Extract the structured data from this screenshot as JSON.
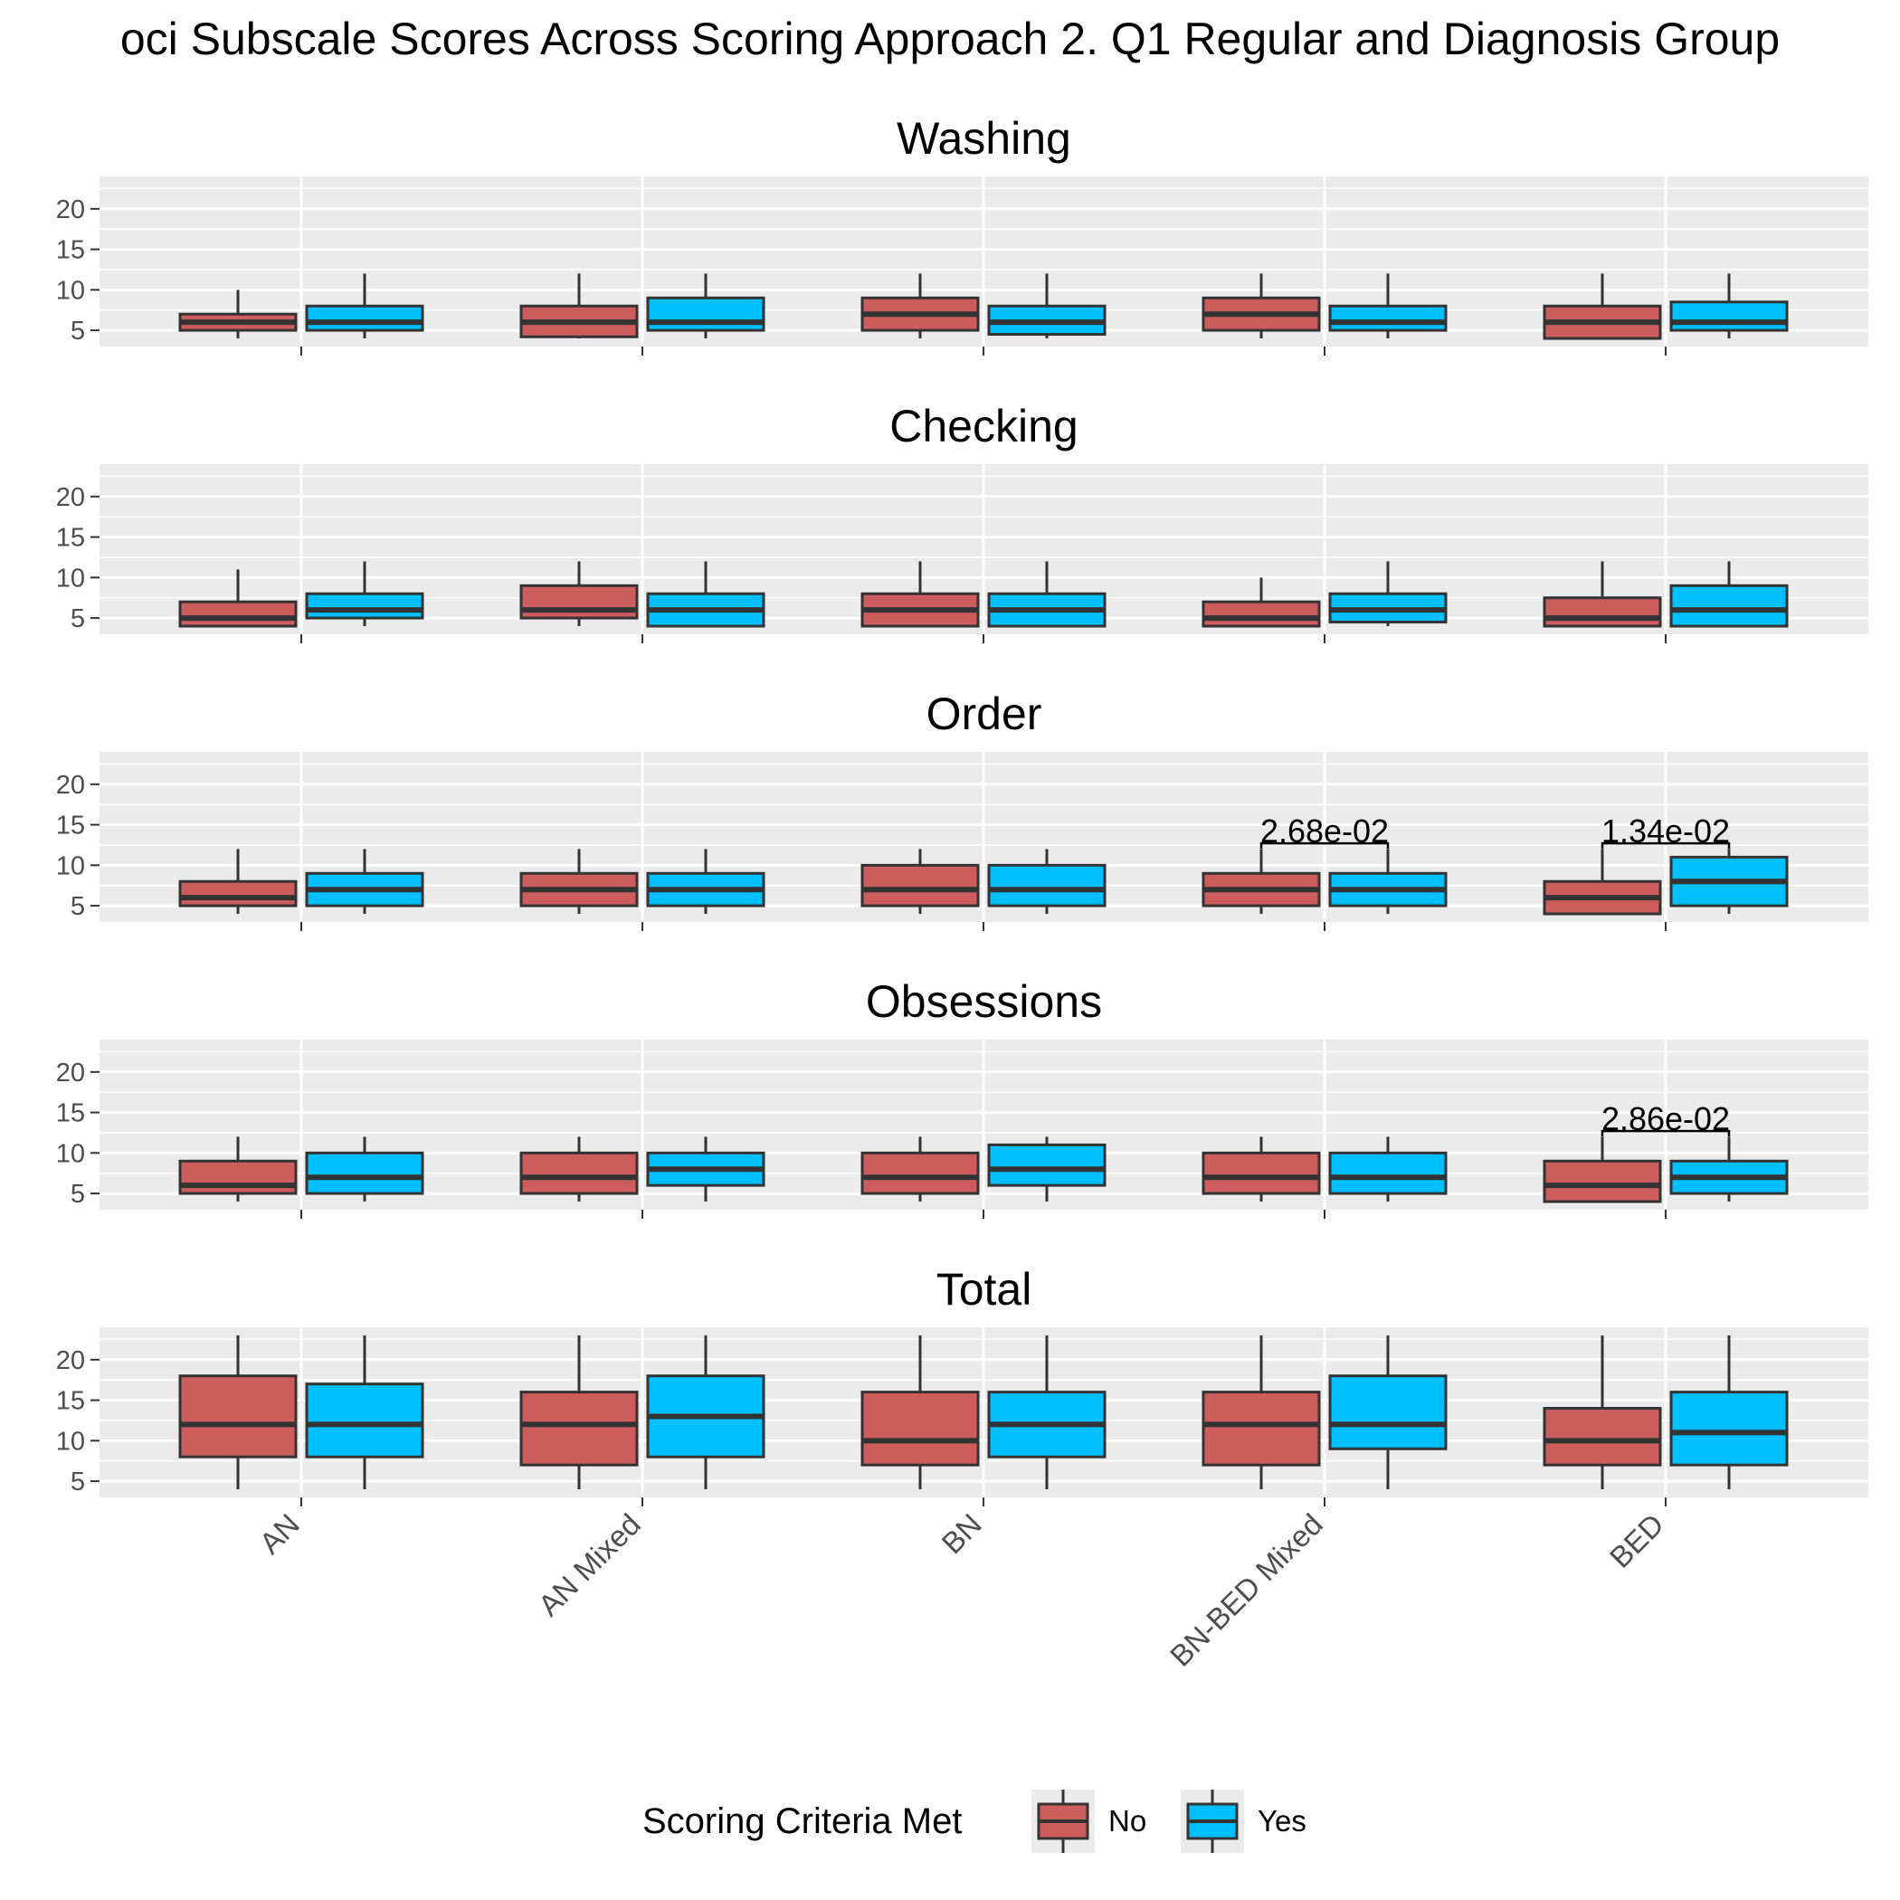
{
  "chart_data": {
    "type": "box",
    "title": "oci Subscale Scores Across Scoring Approach 2. Q1 Regular and Diagnosis Group",
    "categories": [
      "AN",
      "AN Mixed",
      "BN",
      "BN-BED Mixed",
      "BED"
    ],
    "ylim": [
      3,
      24
    ],
    "yticks": [
      5,
      10,
      15,
      20
    ],
    "grid": true,
    "legend": {
      "title": "Scoring Criteria Met",
      "position": "bottom",
      "entries": [
        {
          "name": "No",
          "color": "#cd5c5c"
        },
        {
          "name": "Yes",
          "color": "#00bfff"
        }
      ]
    },
    "panels": [
      {
        "title": "Washing",
        "series": [
          {
            "name": "No",
            "boxes": [
              {
                "min": 4,
                "q1": 5,
                "median": 6,
                "q3": 7,
                "max": 10
              },
              {
                "min": 4,
                "q1": 4.2,
                "median": 6,
                "q3": 8,
                "max": 12
              },
              {
                "min": 4,
                "q1": 5,
                "median": 7,
                "q3": 9,
                "max": 12
              },
              {
                "min": 4,
                "q1": 5,
                "median": 7,
                "q3": 9,
                "max": 12
              },
              {
                "min": 4,
                "q1": 4,
                "median": 6,
                "q3": 8,
                "max": 12
              }
            ]
          },
          {
            "name": "Yes",
            "boxes": [
              {
                "min": 4,
                "q1": 5,
                "median": 6,
                "q3": 8,
                "max": 12
              },
              {
                "min": 4,
                "q1": 5,
                "median": 6,
                "q3": 9,
                "max": 12
              },
              {
                "min": 4,
                "q1": 4.5,
                "median": 6,
                "q3": 8,
                "max": 12
              },
              {
                "min": 4,
                "q1": 5,
                "median": 6,
                "q3": 8,
                "max": 12
              },
              {
                "min": 4,
                "q1": 5,
                "median": 6,
                "q3": 8.5,
                "max": 12
              }
            ]
          }
        ],
        "annotations": []
      },
      {
        "title": "Checking",
        "series": [
          {
            "name": "No",
            "boxes": [
              {
                "min": 4,
                "q1": 4,
                "median": 5,
                "q3": 7,
                "max": 11
              },
              {
                "min": 4,
                "q1": 5,
                "median": 6,
                "q3": 9,
                "max": 12
              },
              {
                "min": 4,
                "q1": 4,
                "median": 6,
                "q3": 8,
                "max": 12
              },
              {
                "min": 4,
                "q1": 4,
                "median": 5,
                "q3": 7,
                "max": 10
              },
              {
                "min": 4,
                "q1": 4,
                "median": 5,
                "q3": 7.5,
                "max": 12
              }
            ]
          },
          {
            "name": "Yes",
            "boxes": [
              {
                "min": 4,
                "q1": 5,
                "median": 6,
                "q3": 8,
                "max": 12
              },
              {
                "min": 4,
                "q1": 4,
                "median": 6,
                "q3": 8,
                "max": 12
              },
              {
                "min": 4,
                "q1": 4,
                "median": 6,
                "q3": 8,
                "max": 12
              },
              {
                "min": 4,
                "q1": 4.5,
                "median": 6,
                "q3": 8,
                "max": 12
              },
              {
                "min": 4,
                "q1": 4,
                "median": 6,
                "q3": 9,
                "max": 12
              }
            ]
          }
        ],
        "annotations": []
      },
      {
        "title": "Order",
        "series": [
          {
            "name": "No",
            "boxes": [
              {
                "min": 4,
                "q1": 5,
                "median": 6,
                "q3": 8,
                "max": 12
              },
              {
                "min": 4,
                "q1": 5,
                "median": 7,
                "q3": 9,
                "max": 12
              },
              {
                "min": 4,
                "q1": 5,
                "median": 7,
                "q3": 10,
                "max": 12
              },
              {
                "min": 4,
                "q1": 5,
                "median": 7,
                "q3": 9,
                "max": 12
              },
              {
                "min": 4,
                "q1": 4,
                "median": 6,
                "q3": 8,
                "max": 12
              }
            ]
          },
          {
            "name": "Yes",
            "boxes": [
              {
                "min": 4,
                "q1": 5,
                "median": 7,
                "q3": 9,
                "max": 12
              },
              {
                "min": 4,
                "q1": 5,
                "median": 7,
                "q3": 9,
                "max": 12
              },
              {
                "min": 4,
                "q1": 5,
                "median": 7,
                "q3": 10,
                "max": 12
              },
              {
                "min": 4,
                "q1": 5,
                "median": 7,
                "q3": 9,
                "max": 12
              },
              {
                "min": 4,
                "q1": 5,
                "median": 8,
                "q3": 11,
                "max": 12
              }
            ]
          }
        ],
        "annotations": [
          {
            "category": "BN-BED Mixed",
            "label": "2.68e-02",
            "y": 12.7
          },
          {
            "category": "BED",
            "label": "1.34e-02",
            "y": 12.7
          }
        ]
      },
      {
        "title": "Obsessions",
        "series": [
          {
            "name": "No",
            "boxes": [
              {
                "min": 4,
                "q1": 5,
                "median": 6,
                "q3": 9,
                "max": 12
              },
              {
                "min": 4,
                "q1": 5,
                "median": 7,
                "q3": 10,
                "max": 12
              },
              {
                "min": 4,
                "q1": 5,
                "median": 7,
                "q3": 10,
                "max": 12
              },
              {
                "min": 4,
                "q1": 5,
                "median": 7,
                "q3": 10,
                "max": 12
              },
              {
                "min": 4,
                "q1": 4,
                "median": 6,
                "q3": 9,
                "max": 12
              }
            ]
          },
          {
            "name": "Yes",
            "boxes": [
              {
                "min": 4,
                "q1": 5,
                "median": 7,
                "q3": 10,
                "max": 12
              },
              {
                "min": 4,
                "q1": 6,
                "median": 8,
                "q3": 10,
                "max": 12
              },
              {
                "min": 4,
                "q1": 6,
                "median": 8,
                "q3": 11,
                "max": 12
              },
              {
                "min": 4,
                "q1": 5,
                "median": 7,
                "q3": 10,
                "max": 12
              },
              {
                "min": 4,
                "q1": 5,
                "median": 7,
                "q3": 9,
                "max": 12
              }
            ]
          }
        ],
        "annotations": [
          {
            "category": "BED",
            "label": "2.86e-02",
            "y": 12.7
          }
        ]
      },
      {
        "title": "Total",
        "series": [
          {
            "name": "No",
            "boxes": [
              {
                "min": 4,
                "q1": 8,
                "median": 12,
                "q3": 18,
                "max": 23
              },
              {
                "min": 4,
                "q1": 7,
                "median": 12,
                "q3": 16,
                "max": 23
              },
              {
                "min": 4,
                "q1": 7,
                "median": 10,
                "q3": 16,
                "max": 23
              },
              {
                "min": 4,
                "q1": 7,
                "median": 12,
                "q3": 16,
                "max": 23
              },
              {
                "min": 4,
                "q1": 7,
                "median": 10,
                "q3": 14,
                "max": 23
              }
            ]
          },
          {
            "name": "Yes",
            "boxes": [
              {
                "min": 4,
                "q1": 8,
                "median": 12,
                "q3": 17,
                "max": 23
              },
              {
                "min": 4,
                "q1": 8,
                "median": 13,
                "q3": 18,
                "max": 23
              },
              {
                "min": 4,
                "q1": 8,
                "median": 12,
                "q3": 16,
                "max": 23
              },
              {
                "min": 4,
                "q1": 9,
                "median": 12,
                "q3": 18,
                "max": 23
              },
              {
                "min": 4,
                "q1": 7,
                "median": 11,
                "q3": 16,
                "max": 23
              }
            ]
          }
        ],
        "annotations": []
      }
    ]
  }
}
